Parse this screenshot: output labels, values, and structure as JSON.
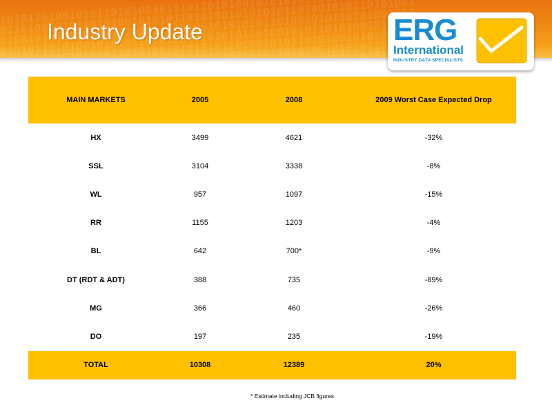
{
  "slide": {
    "title": "Industry Update"
  },
  "logo": {
    "brand": "ERG",
    "subbrand": "International",
    "tagline": "INDUSTRY DATA SPECIALISTS",
    "icon": "envelope-check-icon",
    "colors": {
      "blue": "#1a8bd0",
      "yellow": "#ffc000"
    }
  },
  "banner": {
    "pattern": "1010110100101011010100101010110101001010"
  },
  "table": {
    "headers": [
      "MAIN MARKETS",
      "2005",
      "2008",
      "2009 Worst Case Expected Drop"
    ],
    "rows": [
      {
        "market": "HX",
        "y2005": "3499",
        "y2008": "4621",
        "drop": "-32%"
      },
      {
        "market": "SSL",
        "y2005": "3104",
        "y2008": "3338",
        "drop": "-8%"
      },
      {
        "market": "WL",
        "y2005": "957",
        "y2008": "1097",
        "drop": "-15%"
      },
      {
        "market": "RR",
        "y2005": "1155",
        "y2008": "1203",
        "drop": "-4%"
      },
      {
        "market": "BL",
        "y2005": "642",
        "y2008": "700*",
        "drop": "-9%"
      },
      {
        "market": "DT (RDT & ADT)",
        "y2005": "388",
        "y2008": "735",
        "drop": "-89%"
      },
      {
        "market": "MG",
        "y2005": "366",
        "y2008": "460",
        "drop": "-26%"
      },
      {
        "market": "DO",
        "y2005": "197",
        "y2008": "235",
        "drop": "-19%"
      }
    ],
    "total": {
      "market": "TOTAL",
      "y2005": "10308",
      "y2008": "12389",
      "drop": "20%"
    },
    "header_color": "#ffc000"
  },
  "footnote": "* Estimate including JCB figures"
}
